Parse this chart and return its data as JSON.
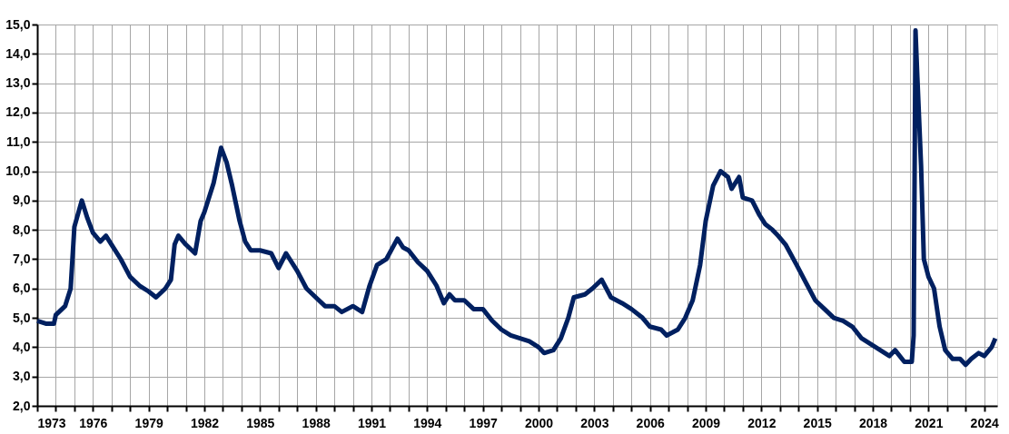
{
  "chart_data": {
    "type": "line",
    "x": [
      1973.0,
      1973.5,
      1973.9,
      1974.0,
      1974.5,
      1974.8,
      1975.0,
      1975.4,
      1975.7,
      1976.0,
      1976.4,
      1976.7,
      1977.0,
      1977.5,
      1978.0,
      1978.5,
      1979.0,
      1979.4,
      1979.9,
      1980.2,
      1980.4,
      1980.6,
      1981.0,
      1981.5,
      1981.8,
      1982.0,
      1982.5,
      1982.9,
      1983.2,
      1983.5,
      1983.9,
      1984.2,
      1984.5,
      1985.0,
      1985.6,
      1986.0,
      1986.4,
      1987.0,
      1987.5,
      1988.0,
      1988.5,
      1989.0,
      1989.4,
      1990.0,
      1990.5,
      1990.9,
      1991.3,
      1991.8,
      1992.4,
      1992.7,
      1993.0,
      1993.5,
      1994.0,
      1994.5,
      1994.9,
      1995.2,
      1995.5,
      1996.0,
      1996.5,
      1997.0,
      1997.5,
      1998.0,
      1998.5,
      1999.0,
      1999.5,
      2000.0,
      2000.3,
      2000.8,
      2001.2,
      2001.6,
      2001.9,
      2002.5,
      2002.9,
      2003.4,
      2003.9,
      2004.5,
      2005.0,
      2005.6,
      2006.0,
      2006.6,
      2006.9,
      2007.5,
      2007.9,
      2008.3,
      2008.7,
      2009.0,
      2009.4,
      2009.8,
      2010.2,
      2010.4,
      2010.8,
      2011.0,
      2011.5,
      2011.9,
      2012.2,
      2012.6,
      2012.9,
      2013.3,
      2013.9,
      2014.4,
      2014.9,
      2015.4,
      2015.9,
      2016.4,
      2016.9,
      2017.4,
      2017.9,
      2018.4,
      2018.9,
      2019.2,
      2019.7,
      2020.1,
      2020.2,
      2020.3,
      2020.4,
      2020.6,
      2020.75,
      2021.0,
      2021.3,
      2021.6,
      2021.9,
      2022.3,
      2022.7,
      2023.0,
      2023.3,
      2023.7,
      2024.0,
      2024.4,
      2024.6
    ],
    "series": [
      {
        "color": "#002060",
        "values": [
          4.9,
          4.8,
          4.8,
          5.1,
          5.4,
          6.0,
          8.1,
          9.0,
          8.4,
          7.9,
          7.6,
          7.8,
          7.5,
          7.0,
          6.4,
          6.1,
          5.9,
          5.7,
          6.0,
          6.3,
          7.5,
          7.8,
          7.5,
          7.2,
          8.3,
          8.6,
          9.6,
          10.8,
          10.3,
          9.5,
          8.3,
          7.6,
          7.3,
          7.3,
          7.2,
          6.7,
          7.2,
          6.6,
          6.0,
          5.7,
          5.4,
          5.4,
          5.2,
          5.4,
          5.2,
          6.1,
          6.8,
          7.0,
          7.7,
          7.4,
          7.3,
          6.9,
          6.6,
          6.1,
          5.5,
          5.8,
          5.6,
          5.6,
          5.3,
          5.3,
          4.9,
          4.6,
          4.4,
          4.3,
          4.2,
          4.0,
          3.8,
          3.9,
          4.3,
          5.0,
          5.7,
          5.8,
          6.0,
          6.3,
          5.7,
          5.5,
          5.3,
          5.0,
          4.7,
          4.6,
          4.4,
          4.6,
          5.0,
          5.6,
          6.8,
          8.3,
          9.5,
          10.0,
          9.8,
          9.4,
          9.8,
          9.1,
          9.0,
          8.5,
          8.2,
          8.0,
          7.8,
          7.5,
          6.8,
          6.2,
          5.6,
          5.3,
          5.0,
          4.9,
          4.7,
          4.3,
          4.1,
          3.9,
          3.7,
          3.9,
          3.5,
          3.5,
          4.4,
          14.8,
          13.2,
          10.2,
          7.0,
          6.4,
          6.0,
          4.7,
          3.9,
          3.6,
          3.6,
          3.4,
          3.6,
          3.8,
          3.7,
          4.0,
          4.3
        ]
      }
    ],
    "xlim": [
      1973,
      2024.7
    ],
    "xticks": [
      1973,
      {
        "value": 1974,
        "label": null
      },
      {
        "value": 1975,
        "label": null
      },
      1976,
      {
        "value": 1977,
        "label": null
      },
      {
        "value": 1978,
        "label": null
      },
      1979,
      {
        "value": 1980,
        "label": null
      },
      {
        "value": 1981,
        "label": null
      },
      1982,
      {
        "value": 1983,
        "label": null
      },
      {
        "value": 1984,
        "label": null
      },
      1985,
      {
        "value": 1986,
        "label": null
      },
      {
        "value": 1987,
        "label": null
      },
      1988,
      {
        "value": 1989,
        "label": null
      },
      {
        "value": 1990,
        "label": null
      },
      1991,
      {
        "value": 1992,
        "label": null
      },
      {
        "value": 1993,
        "label": null
      },
      1994,
      {
        "value": 1995,
        "label": null
      },
      {
        "value": 1996,
        "label": null
      },
      1997,
      {
        "value": 1998,
        "label": null
      },
      {
        "value": 1999,
        "label": null
      },
      2000,
      {
        "value": 2001,
        "label": null
      },
      {
        "value": 2002,
        "label": null
      },
      2003,
      {
        "value": 2004,
        "label": null
      },
      {
        "value": 2005,
        "label": null
      },
      2006,
      {
        "value": 2007,
        "label": null
      },
      {
        "value": 2008,
        "label": null
      },
      2009,
      {
        "value": 2010,
        "label": null
      },
      {
        "value": 2011,
        "label": null
      },
      2012,
      {
        "value": 2013,
        "label": null
      },
      {
        "value": 2014,
        "label": null
      },
      2015,
      {
        "value": 2016,
        "label": null
      },
      {
        "value": 2017,
        "label": null
      },
      2018,
      {
        "value": 2019,
        "label": null
      },
      {
        "value": 2020,
        "label": null
      },
      2021,
      {
        "value": 2022,
        "label": null
      },
      {
        "value": 2023,
        "label": null
      },
      2024
    ],
    "ylim": [
      2,
      15
    ],
    "yticks": [
      {
        "value": 2,
        "label": "2,0"
      },
      {
        "value": 3,
        "label": "3,0"
      },
      {
        "value": 4,
        "label": "4,0"
      },
      {
        "value": 5,
        "label": "5,0"
      },
      {
        "value": 6,
        "label": "6,0"
      },
      {
        "value": 7,
        "label": "7,0"
      },
      {
        "value": 8,
        "label": "8,0"
      },
      {
        "value": 9,
        "label": "9,0"
      },
      {
        "value": 10,
        "label": "10,0"
      },
      {
        "value": 11,
        "label": "11,0"
      },
      {
        "value": 12,
        "label": "12,0"
      },
      {
        "value": 13,
        "label": "13,0"
      },
      {
        "value": 14,
        "label": "14,0"
      },
      {
        "value": 15,
        "label": "15,0"
      }
    ],
    "grid": true,
    "line_style": "solid",
    "marker": "none"
  }
}
